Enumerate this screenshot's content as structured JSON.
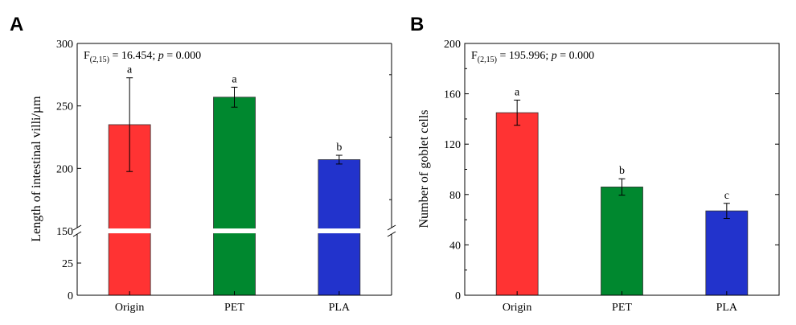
{
  "chart_data": [
    {
      "type": "bar",
      "panel": "A",
      "categories": [
        "Origin",
        "PET",
        "PLA"
      ],
      "values": [
        235,
        257,
        207
      ],
      "errors": [
        37.5,
        8,
        3.5
      ],
      "letters": [
        "a",
        "a",
        "b"
      ],
      "colors": [
        "#ff3333",
        "#00882f",
        "#2233cc"
      ],
      "ylabel": "Length of intestinal villi/µm",
      "stat_parts": {
        "f": "F",
        "sub": "(2,15)",
        "eq": " = 16.454; ",
        "p": "p",
        "pval": " = 0.000"
      },
      "axis_break": {
        "lower": [
          0,
          50
        ],
        "upper": [
          150,
          300
        ]
      },
      "yticks_lower": [
        0,
        25
      ],
      "yticks_upper": [
        150,
        200,
        250,
        300
      ],
      "ytick_labels_lower": [
        "0",
        "25"
      ],
      "ytick_labels_upper": [
        "150",
        "200",
        "250",
        "300"
      ]
    },
    {
      "type": "bar",
      "panel": "B",
      "categories": [
        "Origin",
        "PET",
        "PLA"
      ],
      "values": [
        145,
        86,
        67
      ],
      "errors": [
        10,
        6.5,
        6
      ],
      "letters": [
        "a",
        "b",
        "c"
      ],
      "colors": [
        "#ff3333",
        "#00882f",
        "#2233cc"
      ],
      "ylabel": "Number of goblet cells",
      "stat_parts": {
        "f": "F",
        "sub": "(2,15)",
        "eq": " = 195.996; ",
        "p": "p",
        "pval": " = 0.000"
      },
      "ylim": [
        0,
        200
      ],
      "yticks": [
        0,
        40,
        80,
        120,
        160,
        200
      ],
      "ytick_labels": [
        "0",
        "40",
        "80",
        "120",
        "160",
        "200"
      ]
    }
  ]
}
